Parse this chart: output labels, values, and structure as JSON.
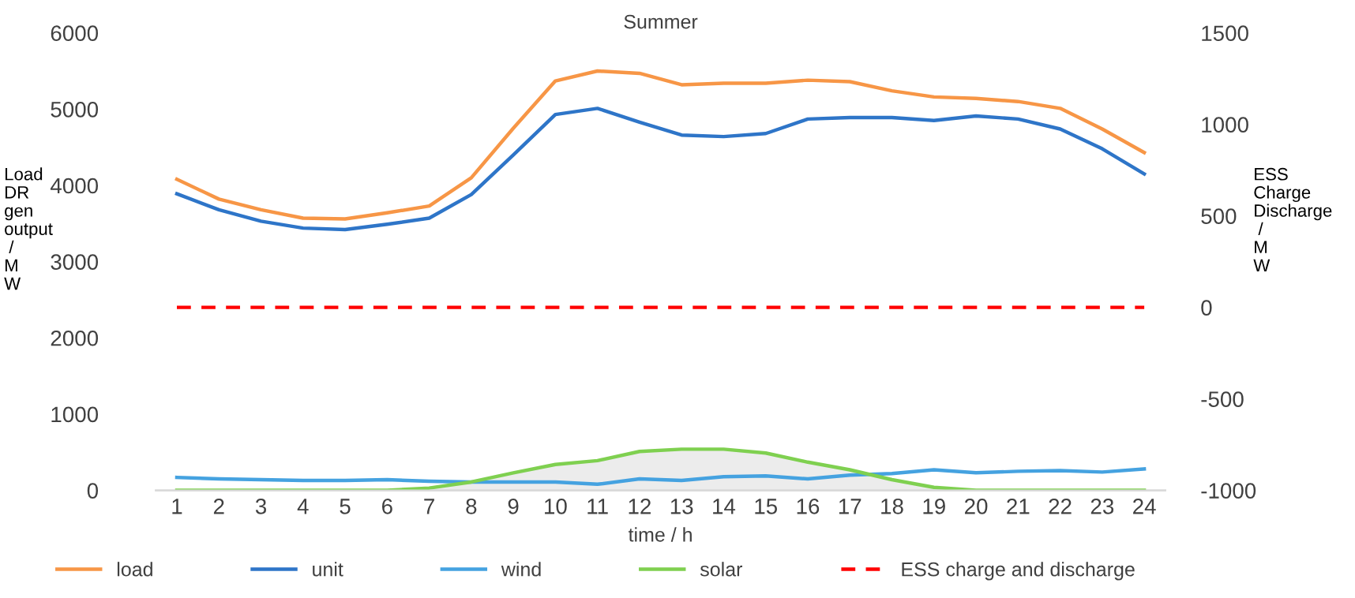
{
  "chart_data": {
    "type": "line",
    "title": "Summer",
    "xlabel": "time / h",
    "ylabel": "Load\nDR\ngen\noutput\n /\nM\nW",
    "y2label": "ESS\nCharge\nDischarge\n /\nM\nW",
    "categories": [
      "1",
      "2",
      "3",
      "4",
      "5",
      "6",
      "7",
      "8",
      "9",
      "10",
      "11",
      "12",
      "13",
      "14",
      "15",
      "16",
      "17",
      "18",
      "19",
      "20",
      "21",
      "22",
      "23",
      "24"
    ],
    "series": [
      {
        "name": "load",
        "color": "#f79646",
        "values": [
          4080,
          3820,
          3680,
          3570,
          3560,
          3640,
          3730,
          4100,
          4750,
          5370,
          5500,
          5470,
          5320,
          5340,
          5340,
          5380,
          5360,
          5240,
          5160,
          5140,
          5100,
          5010,
          4740,
          4430
        ]
      },
      {
        "name": "unit",
        "color": "#2e75c8",
        "values": [
          3890,
          3680,
          3530,
          3440,
          3420,
          3490,
          3570,
          3880,
          4400,
          4930,
          5010,
          4830,
          4660,
          4640,
          4680,
          4870,
          4890,
          4890,
          4850,
          4910,
          4870,
          4740,
          4480,
          4150
        ]
      },
      {
        "name": "wind",
        "color": "#45a2e0",
        "values": [
          170,
          150,
          140,
          130,
          130,
          140,
          120,
          110,
          110,
          110,
          80,
          150,
          130,
          180,
          190,
          150,
          200,
          220,
          270,
          230,
          250,
          260,
          240,
          280
        ]
      },
      {
        "name": "solar",
        "type": "area",
        "color": "#7fd050",
        "values": [
          0,
          0,
          0,
          0,
          0,
          0,
          30,
          110,
          230,
          340,
          390,
          510,
          540,
          540,
          490,
          370,
          270,
          140,
          40,
          0,
          0,
          0,
          0,
          0
        ]
      },
      {
        "name": "ESS charge and discharge",
        "color": "#ff0000",
        "axis": "y2",
        "line_style": "dashed",
        "values": [
          0,
          0,
          0,
          0,
          0,
          0,
          0,
          0,
          0,
          0,
          0,
          0,
          0,
          0,
          0,
          0,
          0,
          0,
          0,
          0,
          0,
          0,
          0,
          0
        ]
      }
    ],
    "ylim": [
      0,
      6000
    ],
    "yticks": [
      0,
      1000,
      2000,
      3000,
      4000,
      5000,
      6000
    ],
    "y2lim": [
      -1000,
      1500
    ],
    "y2ticks": [
      -1000,
      -500,
      0,
      500,
      1000,
      1500
    ],
    "grid": false,
    "legend": "bottom",
    "marker": "none",
    "line_style": "solid"
  }
}
